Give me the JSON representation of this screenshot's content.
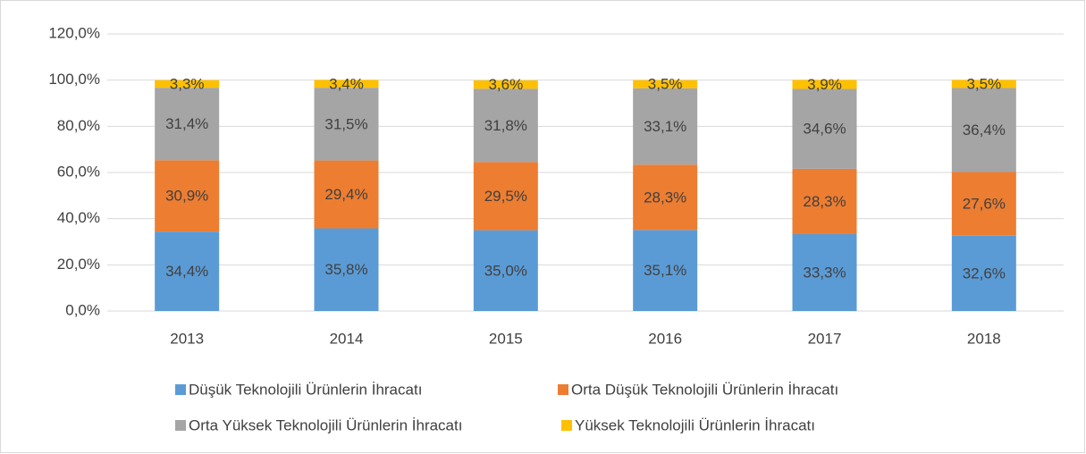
{
  "chart_data": {
    "type": "stacked_bar",
    "categories": [
      "2013",
      "2014",
      "2015",
      "2016",
      "2017",
      "2018"
    ],
    "series": [
      {
        "name": "Düşük Teknolojili Ürünlerin İhracatı",
        "color": "#5b9bd5",
        "values": [
          34.4,
          35.8,
          35.0,
          35.1,
          33.3,
          32.6
        ],
        "value_labels": [
          "34,4%",
          "35,8%",
          "35,0%",
          "35,1%",
          "33,3%",
          "32,6%"
        ]
      },
      {
        "name": "Orta Düşük Teknolojili Ürünlerin İhracatı",
        "color": "#ed7d31",
        "values": [
          30.9,
          29.4,
          29.5,
          28.3,
          28.3,
          27.6
        ],
        "value_labels": [
          "30,9%",
          "29,4%",
          "29,5%",
          "28,3%",
          "28,3%",
          "27,6%"
        ]
      },
      {
        "name": "Orta Yüksek Teknolojili Ürünlerin İhracatı",
        "color": "#a5a5a5",
        "values": [
          31.4,
          31.5,
          31.8,
          33.1,
          34.6,
          36.4
        ],
        "value_labels": [
          "31,4%",
          "31,5%",
          "31,8%",
          "33,1%",
          "34,6%",
          "36,4%"
        ]
      },
      {
        "name": "Yüksek Teknolojili Ürünlerin İhracatı",
        "color": "#ffc000",
        "values": [
          3.3,
          3.4,
          3.6,
          3.5,
          3.9,
          3.5
        ],
        "value_labels": [
          "3,3%",
          "3,4%",
          "3,6%",
          "3,5%",
          "3,9%",
          "3,5%"
        ]
      }
    ],
    "ylim": [
      0,
      120
    ],
    "yticks": [
      {
        "value": 0,
        "label": "0,0%"
      },
      {
        "value": 20,
        "label": "20,0%"
      },
      {
        "value": 40,
        "label": "40,0%"
      },
      {
        "value": 60,
        "label": "60,0%"
      },
      {
        "value": 80,
        "label": "80,0%"
      },
      {
        "value": 100,
        "label": "100,0%"
      },
      {
        "value": 120,
        "label": "120,0%"
      }
    ],
    "grid": true
  }
}
